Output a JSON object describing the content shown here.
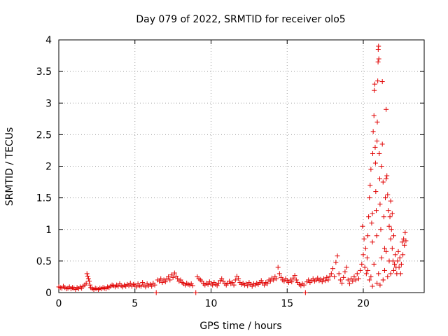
{
  "chart_data": {
    "type": "scatter",
    "title": "Day 079 of 2022, SRMTID for receiver olo5",
    "xlabel": "GPS time / hours",
    "ylabel": "SRMTID / TECUs",
    "xlim": [
      0,
      24
    ],
    "ylim": [
      0,
      4
    ],
    "grid": true,
    "marker": "+",
    "color": "#e00000",
    "x_ticks": [
      0,
      5,
      10,
      15,
      20
    ],
    "x_tick_labels": [
      "0",
      "5",
      "10",
      "15",
      "20"
    ],
    "y_ticks": [
      0,
      0.5,
      1,
      1.5,
      2,
      2.5,
      3,
      3.5,
      4
    ],
    "y_tick_labels": [
      "0",
      "0.5",
      "1",
      "1.5",
      "2",
      "2.5",
      "3",
      "3.5",
      "4"
    ],
    "series": [
      {
        "name": "olo5",
        "points": [
          [
            0.0,
            0.09
          ],
          [
            0.1,
            0.08
          ],
          [
            0.2,
            0.07
          ],
          [
            0.3,
            0.1
          ],
          [
            0.4,
            0.08
          ],
          [
            0.5,
            0.06
          ],
          [
            0.6,
            0.07
          ],
          [
            0.7,
            0.09
          ],
          [
            0.8,
            0.06
          ],
          [
            0.9,
            0.08
          ],
          [
            1.0,
            0.07
          ],
          [
            1.1,
            0.05
          ],
          [
            1.2,
            0.08
          ],
          [
            1.3,
            0.06
          ],
          [
            1.4,
            0.09
          ],
          [
            1.5,
            0.07
          ],
          [
            1.6,
            0.1
          ],
          [
            1.7,
            0.12
          ],
          [
            1.8,
            0.15
          ],
          [
            1.85,
            0.3
          ],
          [
            1.9,
            0.26
          ],
          [
            1.95,
            0.22
          ],
          [
            2.0,
            0.18
          ],
          [
            2.05,
            0.12
          ],
          [
            2.1,
            0.08
          ],
          [
            2.2,
            0.06
          ],
          [
            2.3,
            0.05
          ],
          [
            2.4,
            0.07
          ],
          [
            2.5,
            0.06
          ],
          [
            2.6,
            0.05
          ],
          [
            2.7,
            0.07
          ],
          [
            2.8,
            0.06
          ],
          [
            2.9,
            0.08
          ],
          [
            3.0,
            0.07
          ],
          [
            3.1,
            0.06
          ],
          [
            3.2,
            0.09
          ],
          [
            3.3,
            0.08
          ],
          [
            3.4,
            0.1
          ],
          [
            3.5,
            0.12
          ],
          [
            3.6,
            0.11
          ],
          [
            3.7,
            0.09
          ],
          [
            3.8,
            0.12
          ],
          [
            3.9,
            0.1
          ],
          [
            4.0,
            0.14
          ],
          [
            4.1,
            0.11
          ],
          [
            4.2,
            0.09
          ],
          [
            4.3,
            0.12
          ],
          [
            4.4,
            0.1
          ],
          [
            4.5,
            0.13
          ],
          [
            4.6,
            0.11
          ],
          [
            4.7,
            0.15
          ],
          [
            4.8,
            0.1
          ],
          [
            4.9,
            0.13
          ],
          [
            5.0,
            0.12
          ],
          [
            5.1,
            0.09
          ],
          [
            5.2,
            0.14
          ],
          [
            5.3,
            0.11
          ],
          [
            5.4,
            0.1
          ],
          [
            5.5,
            0.16
          ],
          [
            5.6,
            0.12
          ],
          [
            5.7,
            0.09
          ],
          [
            5.8,
            0.14
          ],
          [
            5.9,
            0.11
          ],
          [
            6.0,
            0.13
          ],
          [
            6.1,
            0.1
          ],
          [
            6.2,
            0.15
          ],
          [
            6.3,
            0.12
          ],
          [
            6.4,
            0.0
          ],
          [
            6.5,
            0.2
          ],
          [
            6.6,
            0.18
          ],
          [
            6.7,
            0.22
          ],
          [
            6.8,
            0.16
          ],
          [
            6.9,
            0.2
          ],
          [
            7.0,
            0.17
          ],
          [
            7.1,
            0.22
          ],
          [
            7.2,
            0.25
          ],
          [
            7.3,
            0.2
          ],
          [
            7.4,
            0.28
          ],
          [
            7.5,
            0.24
          ],
          [
            7.6,
            0.31
          ],
          [
            7.7,
            0.26
          ],
          [
            7.8,
            0.22
          ],
          [
            7.9,
            0.18
          ],
          [
            8.0,
            0.2
          ],
          [
            8.1,
            0.16
          ],
          [
            8.2,
            0.14
          ],
          [
            8.3,
            0.12
          ],
          [
            8.4,
            0.15
          ],
          [
            8.5,
            0.13
          ],
          [
            8.6,
            0.12
          ],
          [
            8.7,
            0.14
          ],
          [
            8.8,
            0.11
          ],
          [
            9.0,
            0.0
          ],
          [
            9.1,
            0.25
          ],
          [
            9.2,
            0.22
          ],
          [
            9.3,
            0.2
          ],
          [
            9.4,
            0.18
          ],
          [
            9.5,
            0.14
          ],
          [
            9.6,
            0.12
          ],
          [
            9.7,
            0.15
          ],
          [
            9.8,
            0.13
          ],
          [
            9.9,
            0.17
          ],
          [
            10.0,
            0.14
          ],
          [
            10.1,
            0.12
          ],
          [
            10.2,
            0.16
          ],
          [
            10.3,
            0.13
          ],
          [
            10.4,
            0.11
          ],
          [
            10.5,
            0.15
          ],
          [
            10.6,
            0.19
          ],
          [
            10.7,
            0.22
          ],
          [
            10.8,
            0.18
          ],
          [
            10.9,
            0.14
          ],
          [
            11.0,
            0.12
          ],
          [
            11.1,
            0.15
          ],
          [
            11.2,
            0.18
          ],
          [
            11.3,
            0.14
          ],
          [
            11.4,
            0.16
          ],
          [
            11.5,
            0.12
          ],
          [
            11.6,
            0.2
          ],
          [
            11.7,
            0.26
          ],
          [
            11.8,
            0.22
          ],
          [
            11.9,
            0.16
          ],
          [
            12.0,
            0.13
          ],
          [
            12.1,
            0.15
          ],
          [
            12.2,
            0.12
          ],
          [
            12.3,
            0.14
          ],
          [
            12.4,
            0.11
          ],
          [
            12.5,
            0.16
          ],
          [
            12.6,
            0.13
          ],
          [
            12.7,
            0.1
          ],
          [
            12.8,
            0.14
          ],
          [
            12.9,
            0.12
          ],
          [
            13.0,
            0.15
          ],
          [
            13.1,
            0.13
          ],
          [
            13.2,
            0.16
          ],
          [
            13.3,
            0.19
          ],
          [
            13.4,
            0.15
          ],
          [
            13.5,
            0.12
          ],
          [
            13.6,
            0.16
          ],
          [
            13.7,
            0.14
          ],
          [
            13.8,
            0.2
          ],
          [
            13.9,
            0.18
          ],
          [
            14.0,
            0.23
          ],
          [
            14.1,
            0.2
          ],
          [
            14.2,
            0.25
          ],
          [
            14.3,
            0.22
          ],
          [
            14.4,
            0.4
          ],
          [
            14.5,
            0.3
          ],
          [
            14.6,
            0.24
          ],
          [
            14.7,
            0.2
          ],
          [
            14.8,
            0.18
          ],
          [
            14.9,
            0.22
          ],
          [
            15.0,
            0.19
          ],
          [
            15.1,
            0.16
          ],
          [
            15.2,
            0.2
          ],
          [
            15.3,
            0.17
          ],
          [
            15.4,
            0.23
          ],
          [
            15.5,
            0.27
          ],
          [
            15.6,
            0.2
          ],
          [
            15.7,
            0.16
          ],
          [
            15.8,
            0.13
          ],
          [
            15.9,
            0.11
          ],
          [
            16.0,
            0.14
          ],
          [
            16.1,
            0.12
          ],
          [
            16.2,
            0.0
          ],
          [
            16.3,
            0.17
          ],
          [
            16.4,
            0.2
          ],
          [
            16.5,
            0.16
          ],
          [
            16.6,
            0.19
          ],
          [
            16.7,
            0.22
          ],
          [
            16.8,
            0.18
          ],
          [
            16.9,
            0.2
          ],
          [
            17.0,
            0.23
          ],
          [
            17.1,
            0.19
          ],
          [
            17.2,
            0.21
          ],
          [
            17.3,
            0.17
          ],
          [
            17.4,
            0.22
          ],
          [
            17.5,
            0.19
          ],
          [
            17.6,
            0.24
          ],
          [
            17.7,
            0.2
          ],
          [
            17.8,
            0.26
          ],
          [
            17.9,
            0.3
          ],
          [
            18.0,
            0.38
          ],
          [
            18.1,
            0.25
          ],
          [
            18.2,
            0.48
          ],
          [
            18.3,
            0.58
          ],
          [
            18.4,
            0.3
          ],
          [
            18.5,
            0.2
          ],
          [
            18.6,
            0.15
          ],
          [
            18.7,
            0.24
          ],
          [
            18.8,
            0.33
          ],
          [
            18.9,
            0.4
          ],
          [
            19.0,
            0.2
          ],
          [
            19.1,
            0.14
          ],
          [
            19.2,
            0.22
          ],
          [
            19.3,
            0.18
          ],
          [
            19.4,
            0.25
          ],
          [
            19.5,
            0.2
          ],
          [
            19.6,
            0.3
          ],
          [
            19.7,
            0.22
          ],
          [
            19.8,
            0.35
          ],
          [
            19.9,
            0.45
          ],
          [
            19.95,
            1.05
          ],
          [
            20.0,
            0.6
          ],
          [
            20.05,
            0.85
          ],
          [
            20.1,
            0.4
          ],
          [
            20.15,
            0.7
          ],
          [
            20.2,
            0.3
          ],
          [
            20.25,
            0.55
          ],
          [
            20.3,
            0.9
          ],
          [
            20.35,
            1.2
          ],
          [
            20.4,
            1.5
          ],
          [
            20.45,
            1.7
          ],
          [
            20.5,
            1.95
          ],
          [
            20.55,
            1.1
          ],
          [
            20.6,
            0.8
          ],
          [
            20.62,
            2.2
          ],
          [
            20.65,
            2.55
          ],
          [
            20.7,
            2.8
          ],
          [
            20.72,
            3.2
          ],
          [
            20.75,
            3.3
          ],
          [
            20.78,
            2.3
          ],
          [
            20.8,
            2.05
          ],
          [
            20.82,
            1.6
          ],
          [
            20.85,
            1.3
          ],
          [
            20.88,
            0.9
          ],
          [
            20.9,
            2.4
          ],
          [
            20.92,
            2.7
          ],
          [
            20.95,
            3.35
          ],
          [
            20.97,
            3.65
          ],
          [
            20.98,
            3.85
          ],
          [
            21.0,
            3.9
          ],
          [
            21.02,
            3.7
          ],
          [
            21.05,
            2.2
          ],
          [
            21.08,
            1.8
          ],
          [
            21.1,
            1.4
          ],
          [
            21.15,
            1.0
          ],
          [
            21.2,
            2.0
          ],
          [
            21.25,
            2.35
          ],
          [
            21.3,
            1.75
          ],
          [
            21.35,
            1.2
          ],
          [
            21.4,
            0.7
          ],
          [
            21.45,
            1.5
          ],
          [
            21.5,
            2.9
          ],
          [
            21.55,
            1.85
          ],
          [
            21.6,
            1.55
          ],
          [
            21.65,
            1.3
          ],
          [
            21.7,
            1.05
          ],
          [
            21.75,
            1.2
          ],
          [
            21.8,
            0.85
          ],
          [
            21.85,
            1.0
          ],
          [
            21.9,
            0.7
          ],
          [
            21.95,
            0.5
          ],
          [
            22.0,
            0.35
          ],
          [
            22.05,
            0.45
          ],
          [
            22.1,
            0.6
          ],
          [
            22.15,
            0.4
          ],
          [
            22.2,
            0.3
          ],
          [
            22.25,
            0.5
          ],
          [
            22.3,
            0.65
          ],
          [
            22.35,
            0.4
          ],
          [
            22.4,
            0.55
          ],
          [
            22.45,
            0.3
          ],
          [
            22.5,
            0.45
          ],
          [
            22.55,
            0.8
          ],
          [
            22.6,
            0.6
          ],
          [
            22.65,
            0.85
          ],
          [
            22.7,
            0.75
          ],
          [
            22.75,
            0.95
          ],
          [
            22.8,
            0.82
          ],
          [
            20.6,
            0.1
          ],
          [
            20.7,
            0.45
          ],
          [
            20.9,
            0.15
          ],
          [
            21.0,
            0.3
          ],
          [
            21.1,
            0.12
          ],
          [
            21.2,
            0.55
          ],
          [
            21.3,
            0.2
          ],
          [
            21.4,
            0.35
          ],
          [
            21.5,
            0.65
          ],
          [
            21.6,
            0.25
          ],
          [
            21.7,
            0.5
          ],
          [
            21.8,
            0.3
          ],
          [
            20.4,
            0.2
          ],
          [
            20.5,
            0.25
          ],
          [
            20.3,
            0.35
          ],
          [
            21.25,
            3.34
          ],
          [
            20.6,
            1.25
          ],
          [
            21.5,
            1.8
          ],
          [
            21.8,
            1.45
          ],
          [
            22.0,
            0.9
          ],
          [
            21.9,
            1.25
          ]
        ]
      }
    ]
  }
}
